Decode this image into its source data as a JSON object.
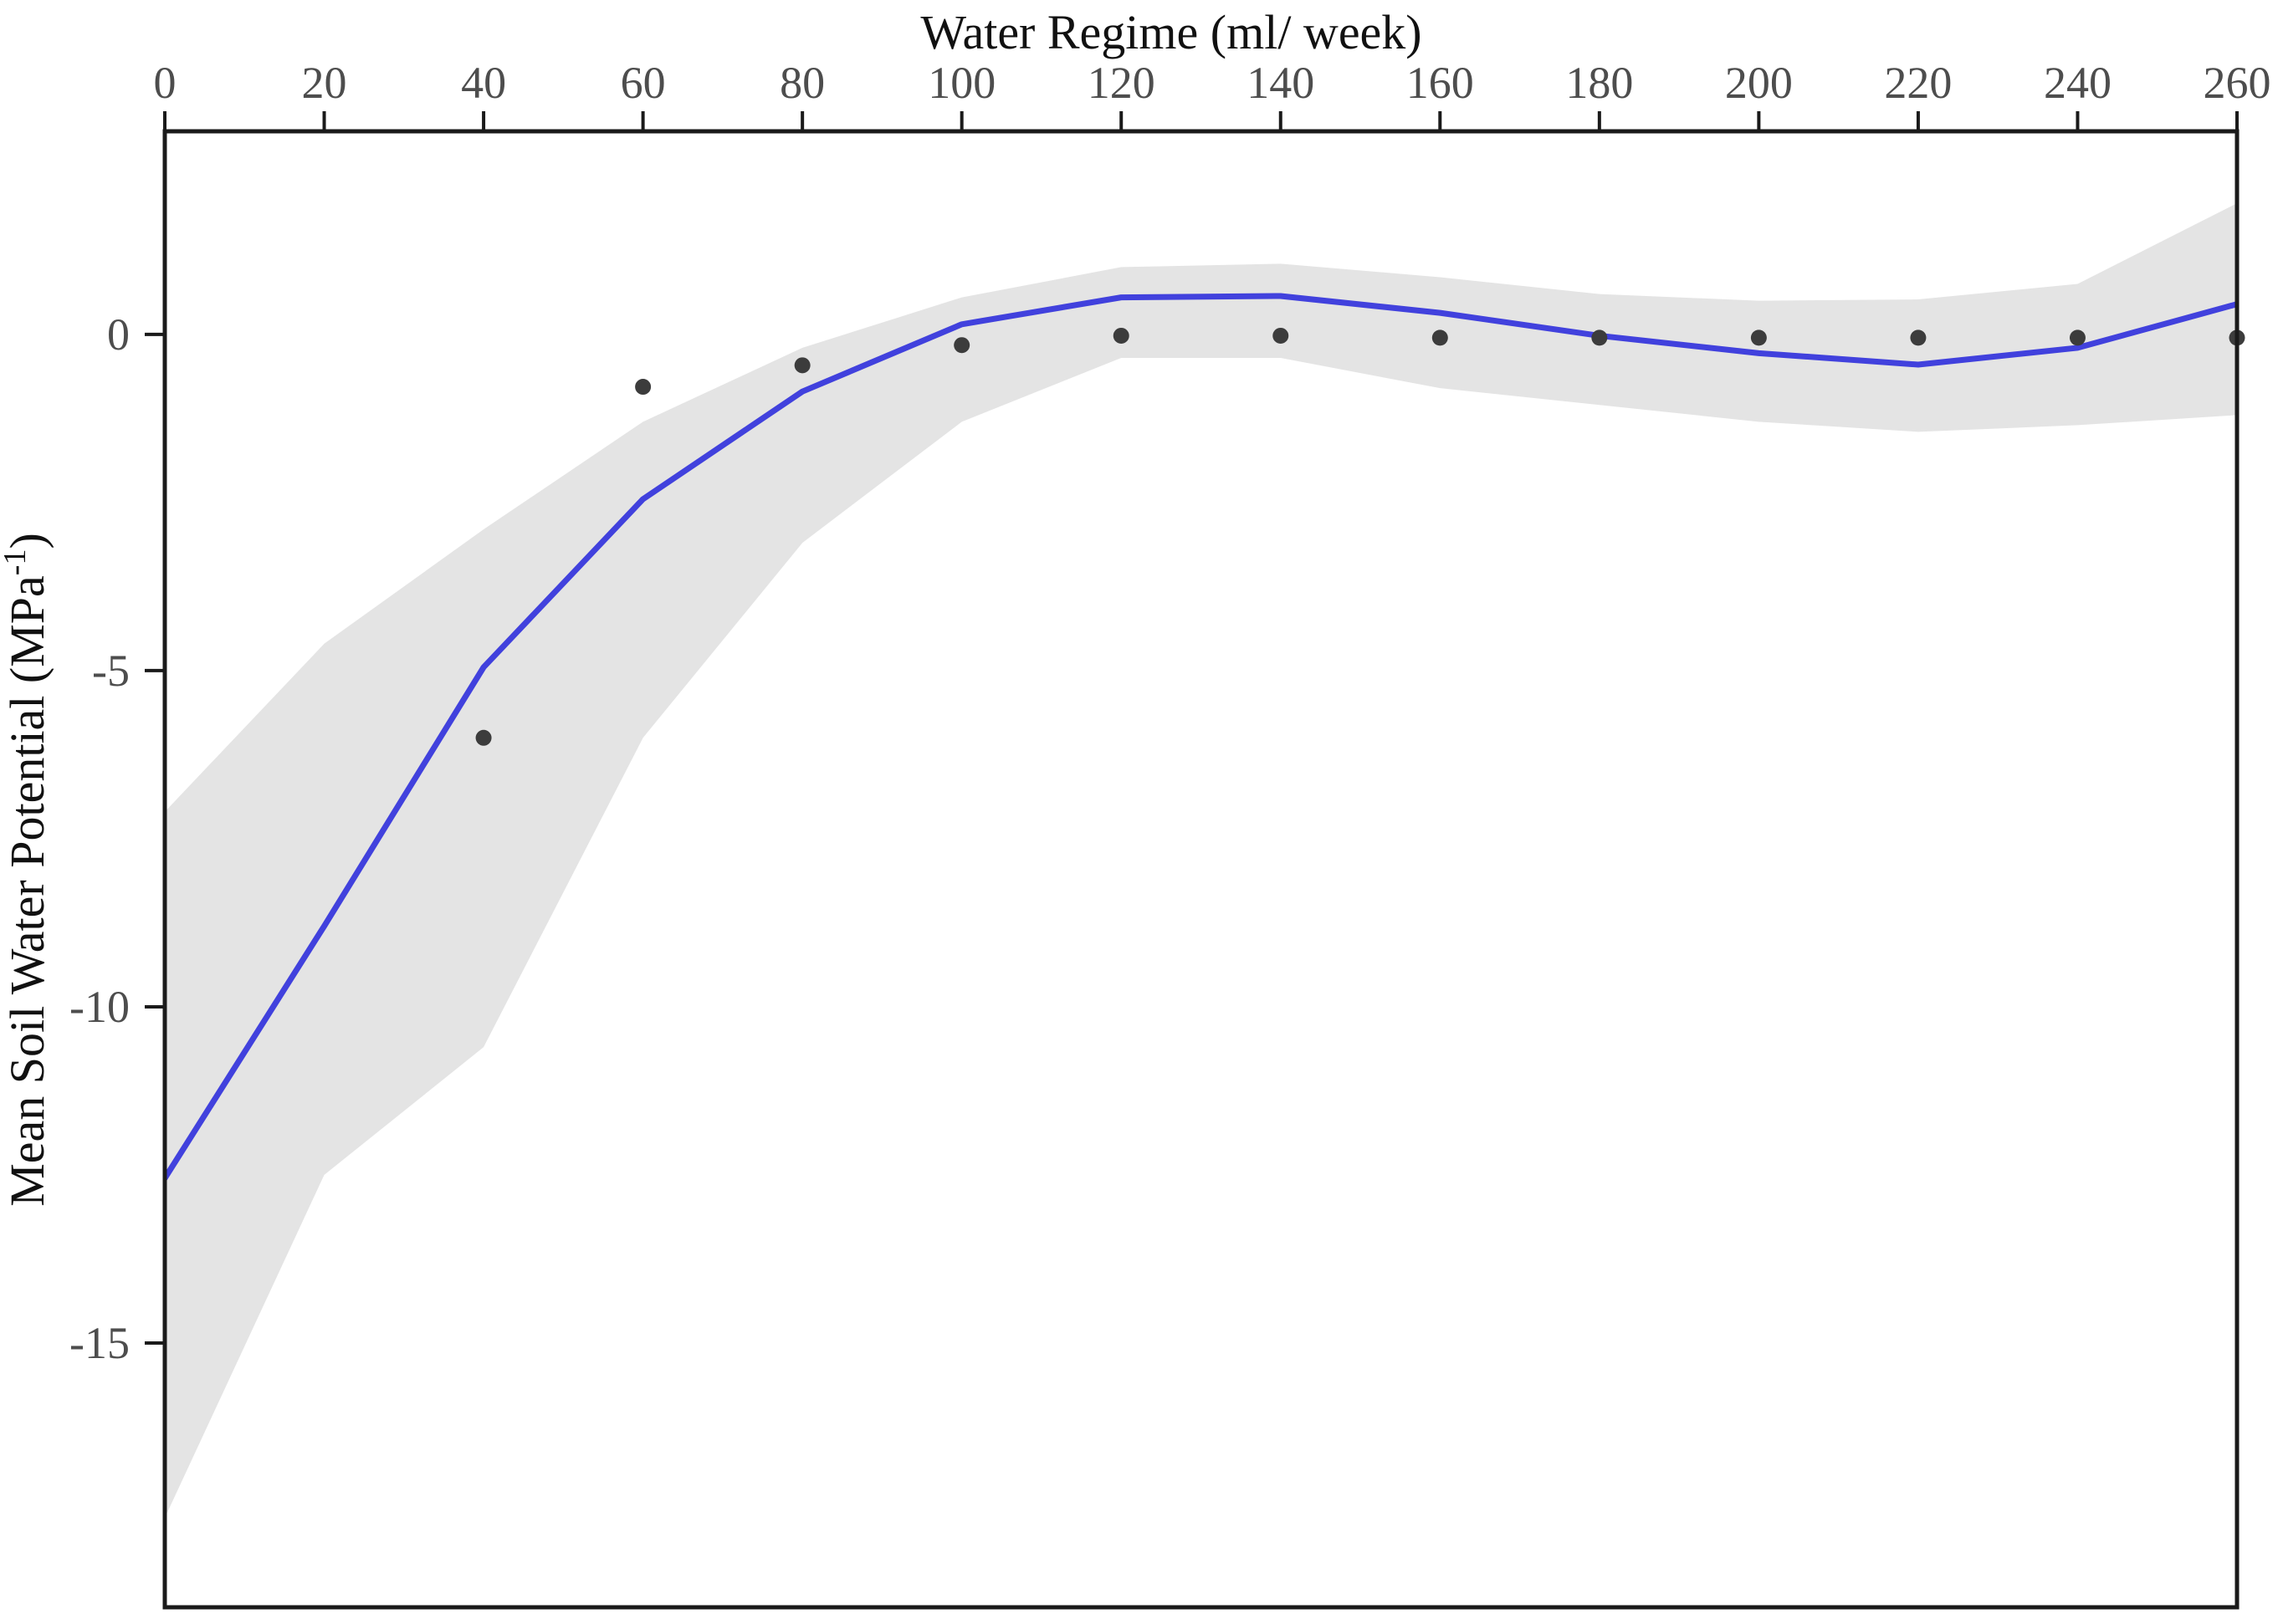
{
  "figure": {
    "xlabel": "Water Regime (ml/ week)",
    "ylabel_parts": [
      "Mean Soil Water Potential (MPa",
      "-1",
      ")"
    ]
  },
  "colors": {
    "line": "#4141dd",
    "band": "#e4e4e4",
    "points": "#3c3c3c",
    "axis": "#1a1a1a",
    "tick_labels": "#4d4d4d",
    "titles": "#111111"
  },
  "chart_data": {
    "type": "line",
    "title": "",
    "xlabel": "Water Regime (ml/ week)",
    "ylabel": "Mean Soil Water Potential (MPa^-1)",
    "xlim": [
      0,
      260
    ],
    "ylim": [
      -18.93,
      3.02
    ],
    "x_ticks": [
      0,
      20,
      40,
      60,
      80,
      100,
      120,
      140,
      160,
      180,
      200,
      220,
      240,
      260
    ],
    "y_ticks": [
      0,
      -5,
      -10,
      -15
    ],
    "grid": false,
    "legend": false,
    "x": [
      0,
      20,
      40,
      60,
      80,
      100,
      120,
      140,
      160,
      180,
      200,
      220,
      240,
      260
    ],
    "series": [
      {
        "name": "fitted line",
        "type": "line",
        "y": [
          -12.55,
          -8.8,
          -4.95,
          -2.45,
          -0.85,
          0.15,
          0.55,
          0.57,
          0.32,
          -0.02,
          -0.28,
          -0.45,
          -0.2,
          0.45
        ]
      },
      {
        "name": "confidence band",
        "type": "band",
        "y_upper": [
          -7.1,
          -4.6,
          -2.9,
          -1.3,
          -0.2,
          0.55,
          1.0,
          1.05,
          0.85,
          0.6,
          0.5,
          0.52,
          0.75,
          1.95
        ],
        "y_lower": [
          -17.6,
          -12.5,
          -10.6,
          -6.0,
          -3.1,
          -1.3,
          -0.35,
          -0.35,
          -0.8,
          -1.05,
          -1.3,
          -1.45,
          -1.35,
          -1.2
        ]
      },
      {
        "name": "observed means",
        "type": "scatter",
        "points": [
          [
            40,
            -6.0
          ],
          [
            60,
            -0.78
          ],
          [
            80,
            -0.46
          ],
          [
            100,
            -0.16
          ],
          [
            120,
            -0.02
          ],
          [
            140,
            -0.02
          ],
          [
            160,
            -0.05
          ],
          [
            180,
            -0.05
          ],
          [
            200,
            -0.05
          ],
          [
            220,
            -0.05
          ],
          [
            240,
            -0.05
          ],
          [
            260,
            -0.05
          ]
        ]
      }
    ]
  }
}
